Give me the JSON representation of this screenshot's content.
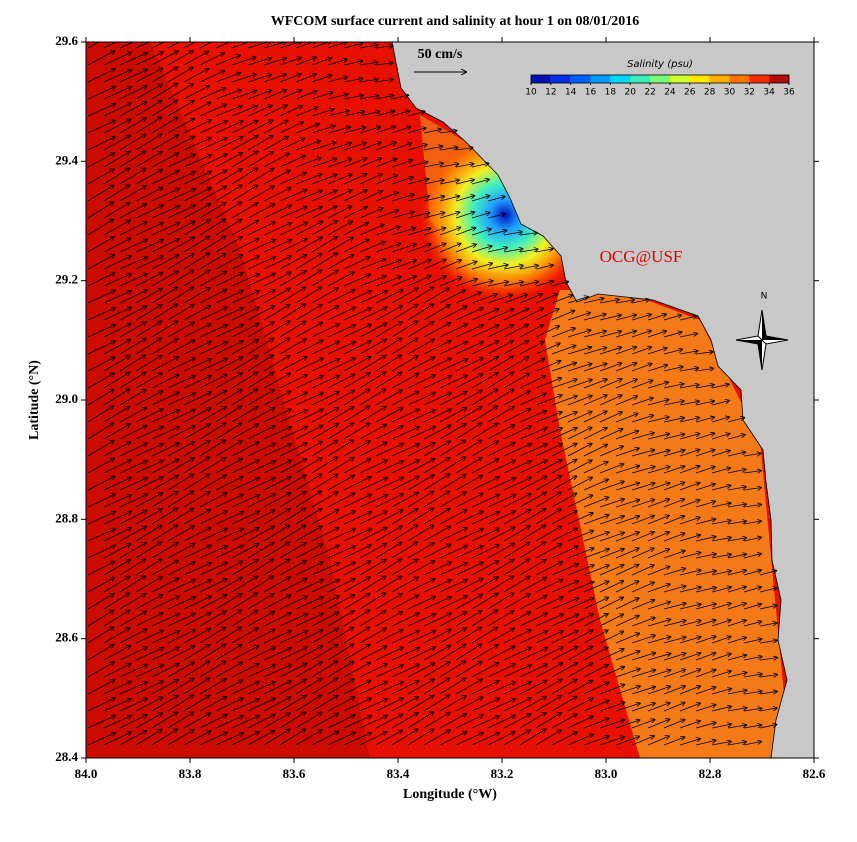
{
  "chart_data": {
    "type": "map",
    "title": "WFCOM surface current and salinity at hour 1 on 08/01/2016",
    "xlabel": "Longitude (°W)",
    "ylabel": "Latitude (°N)",
    "xlim": [
      {
        "value": 84,
        "label": "84.0"
      },
      82.6
    ],
    "xticks": [
      {
        "value": 84,
        "label": "84.0"
      },
      83.8,
      83.6,
      83.4,
      83.2,
      {
        "value": 83,
        "label": "83.0"
      },
      82.8,
      82.6
    ],
    "ylim": [
      28.4,
      29.6
    ],
    "yticks": [
      28.4,
      28.6,
      28.8,
      {
        "value": 29,
        "label": "29.0"
      },
      29.2,
      29.4,
      29.6
    ],
    "colorbar": {
      "title": "Salinity (psu)",
      "lim": [
        10,
        36
      ],
      "ticks": [
        10,
        12,
        14,
        16,
        18,
        20,
        22,
        24,
        26,
        28,
        30,
        32,
        34,
        36
      ]
    },
    "annotations": {
      "scale_arrow": "50 cm/s",
      "credit": "OCG@USF",
      "compass": "N"
    }
  }
}
